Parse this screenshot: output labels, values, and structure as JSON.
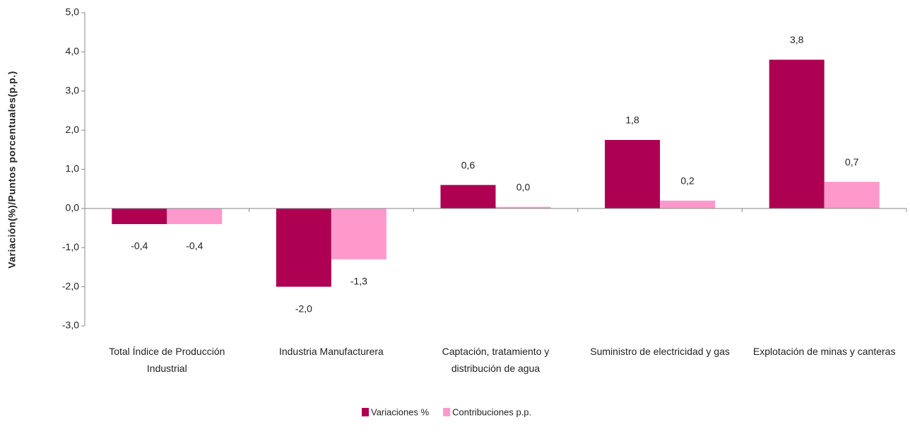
{
  "chart_data": {
    "type": "bar",
    "y_axis_label": "Variación(%)/Puntos porcentuales(p.p.)",
    "categories": [
      "Total Índice de Producción Industrial",
      "Industria Manufacturera",
      "Captación, tratamiento y distribución de agua",
      "Suministro de electricidad y gas",
      "Explotación de minas y canteras"
    ],
    "series": [
      {
        "name": "Variaciones %",
        "color": "#ad0052",
        "values": [
          -0.4,
          -2.0,
          0.6,
          1.75,
          3.8
        ],
        "value_labels": [
          "-0,4",
          "-2,0",
          "0,6",
          "1,8",
          "3,8"
        ]
      },
      {
        "name": "Contribuciones p.p.",
        "color": "#ff99cc",
        "values": [
          -0.4,
          -1.3,
          0.04,
          0.2,
          0.68
        ],
        "value_labels": [
          "-0,4",
          "-1,3",
          "0,0",
          "0,2",
          "0,7"
        ]
      }
    ],
    "ylim": [
      -3,
      5
    ],
    "yticks": [
      {
        "value": -3,
        "label": "-3,0"
      },
      {
        "value": -2,
        "label": "-2,0"
      },
      {
        "value": -1,
        "label": "-1,0"
      },
      {
        "value": 0,
        "label": "0,0"
      },
      {
        "value": 1,
        "label": "1,0"
      },
      {
        "value": 2,
        "label": "2,0"
      },
      {
        "value": 3,
        "label": "3,0"
      },
      {
        "value": 4,
        "label": "4,0"
      },
      {
        "value": 5,
        "label": "5,0"
      }
    ],
    "grid": false,
    "legend": "bottom"
  }
}
